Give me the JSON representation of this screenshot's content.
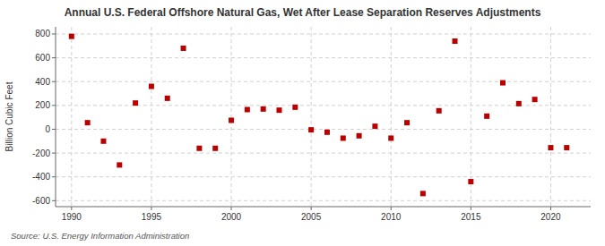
{
  "chart_data": {
    "type": "scatter",
    "title": "Annual U.S. Federal Offshore Natural Gas, Wet After Lease Separation Reserves Adjustments",
    "y_label": "Billion Cubic Feet",
    "source": "Source: U.S. Energy Information Administration",
    "x": [
      1990,
      1991,
      1992,
      1993,
      1994,
      1995,
      1996,
      1997,
      1998,
      1999,
      2000,
      2001,
      2002,
      2003,
      2004,
      2005,
      2006,
      2007,
      2008,
      2009,
      2010,
      2011,
      2012,
      2013,
      2014,
      2015,
      2016,
      2017,
      2018,
      2019,
      2020,
      2021
    ],
    "values": [
      780,
      55,
      -100,
      -300,
      220,
      360,
      260,
      680,
      -160,
      -160,
      75,
      165,
      170,
      160,
      185,
      -5,
      -25,
      -75,
      -55,
      25,
      -75,
      55,
      -540,
      155,
      740,
      -440,
      110,
      390,
      215,
      250,
      -155,
      -155
    ],
    "color": "#bb0000",
    "marker": "square",
    "xlim": [
      1989.0,
      2022.5
    ],
    "ylim": [
      -650,
      860
    ],
    "xticks": [
      1990,
      1995,
      2000,
      2005,
      2010,
      2015,
      2020
    ],
    "yticks": [
      -600,
      -400,
      -200,
      0,
      200,
      400,
      600,
      800
    ],
    "grid": true
  }
}
